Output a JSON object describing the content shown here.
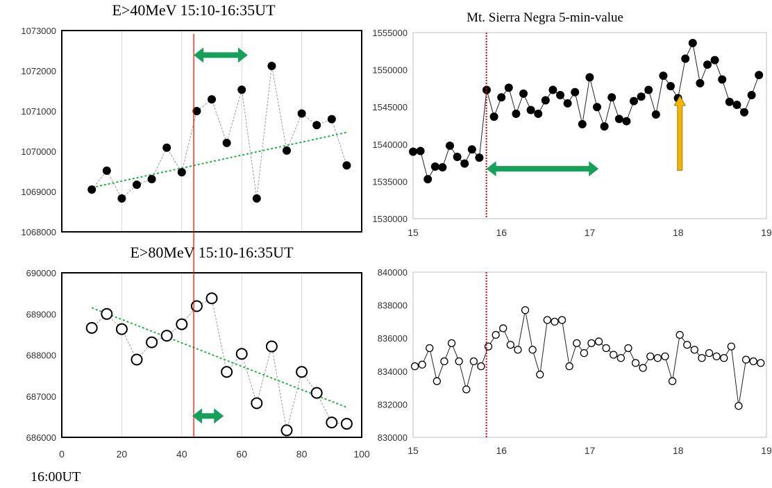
{
  "footer_label": "16:00UT",
  "colors": {
    "marker": "#000000",
    "trend": "#22b14c",
    "arrow_green": "#16a05a",
    "arrow_gold": "#f5b400",
    "vline": "#e00000",
    "grid": "#d9d9d9"
  },
  "chart_data": [
    {
      "id": "tl",
      "type": "scatter",
      "title": "E>40MeV  15:10-16:35UT",
      "xlabel": "",
      "ylabel": "",
      "xlim": [
        0,
        100
      ],
      "ylim": [
        1068000,
        1073000
      ],
      "x_ticks": [
        0,
        20,
        40,
        60,
        80,
        100
      ],
      "show_x_tick_labels": false,
      "y_ticks": [
        1068000,
        1069000,
        1070000,
        1071000,
        1072000,
        1073000
      ],
      "y_tick_labels": [
        "1068000",
        "1069000",
        "1070000",
        "1071000",
        "1072000",
        "1073000"
      ],
      "grid": "vertical",
      "marker": "filled",
      "connector": "dotted",
      "series": [
        {
          "x": [
            10,
            15,
            20,
            25,
            30,
            35,
            40,
            45,
            50,
            55,
            60,
            65,
            70,
            75,
            80,
            85,
            90,
            95
          ],
          "y": [
            1069050,
            1069520,
            1068830,
            1069170,
            1069310,
            1070090,
            1069480,
            1071000,
            1071290,
            1070210,
            1071530,
            1068830,
            1072120,
            1070020,
            1070940,
            1070650,
            1070800,
            1069650
          ]
        }
      ],
      "trendline": [
        [
          10,
          1069100
        ],
        [
          95,
          1070470
        ]
      ],
      "vline_x": 44,
      "arrow": {
        "type": "double",
        "x1": 44,
        "x2": 62,
        "y": 1072390
      }
    },
    {
      "id": "tr",
      "type": "scatter",
      "title": "Mt. Sierra Negra  5-min-value",
      "xlabel": "",
      "ylabel": "",
      "xlim": [
        15,
        19
      ],
      "ylim": [
        1530000,
        1555000
      ],
      "x_ticks": [
        15,
        16,
        17,
        18,
        19
      ],
      "show_x_tick_labels": true,
      "y_ticks": [
        1530000,
        1535000,
        1540000,
        1545000,
        1550000,
        1555000
      ],
      "y_tick_labels": [
        "1530000",
        "1535000",
        "1540000",
        "1545000",
        "1550000",
        "1555000"
      ],
      "grid": "none",
      "marker": "filled",
      "connector": "solid",
      "series": [
        {
          "x_start": 15.0,
          "x_step": 0.0833,
          "y": [
            1539000,
            1539100,
            1535300,
            1537000,
            1536900,
            1539800,
            1538300,
            1537400,
            1539300,
            1538200,
            1547300,
            1543700,
            1546300,
            1547600,
            1544100,
            1546800,
            1544600,
            1544100,
            1545900,
            1547300,
            1546600,
            1545500,
            1547000,
            1542700,
            1549000,
            1545000,
            1542400,
            1546300,
            1543400,
            1543100,
            1545800,
            1546400,
            1547300,
            1544000,
            1549200,
            1547800,
            1546200,
            1551500,
            1553600,
            1548200,
            1550700,
            1551300,
            1548700,
            1545700,
            1545300,
            1544300,
            1546600,
            1549300
          ]
        }
      ],
      "vline_x": 15.83,
      "arrow": {
        "type": "double",
        "x1": 15.83,
        "x2": 17.1,
        "y": 1536700
      },
      "arrow2": {
        "type": "up",
        "x": 18.02,
        "y1": 1536500,
        "y2": 1546500
      }
    },
    {
      "id": "bl",
      "type": "scatter",
      "title": "E>80MeV 15:10-16:35UT",
      "xlabel": "",
      "ylabel": "",
      "xlim": [
        0,
        100
      ],
      "ylim": [
        686000,
        690000
      ],
      "x_ticks": [
        0,
        20,
        40,
        60,
        80,
        100
      ],
      "show_x_tick_labels": true,
      "y_ticks": [
        686000,
        687000,
        688000,
        689000,
        690000
      ],
      "y_tick_labels": [
        "686000",
        "687000",
        "688000",
        "689000",
        "690000"
      ],
      "grid": "vertical",
      "marker": "open",
      "connector": "dotted",
      "series": [
        {
          "x": [
            10,
            15,
            20,
            25,
            30,
            35,
            40,
            45,
            50,
            55,
            60,
            65,
            70,
            75,
            80,
            85,
            90,
            95
          ],
          "y": [
            688660,
            689000,
            688630,
            687890,
            688310,
            688470,
            688750,
            689190,
            689380,
            687590,
            688030,
            686830,
            688210,
            686170,
            687590,
            687080,
            686360,
            686330
          ]
        }
      ],
      "trendline": [
        [
          10,
          689150
        ],
        [
          95,
          686730
        ]
      ],
      "vline_x": 44,
      "arrow": {
        "type": "double",
        "x1": 43.5,
        "x2": 54,
        "y": 686520
      }
    },
    {
      "id": "br",
      "type": "scatter",
      "title": "",
      "xlabel": "",
      "ylabel": "",
      "xlim": [
        15,
        19
      ],
      "ylim": [
        830000,
        840000
      ],
      "x_ticks": [
        15,
        16,
        17,
        18,
        19
      ],
      "show_x_tick_labels": true,
      "y_ticks": [
        830000,
        832000,
        834000,
        836000,
        838000,
        840000
      ],
      "y_tick_labels": [
        "830000",
        "832000",
        "834000",
        "836000",
        "838000",
        "840000"
      ],
      "grid": "none",
      "marker": "open",
      "connector": "solid",
      "series": [
        {
          "x_start": 15.02,
          "x_step": 0.0833,
          "y": [
            834300,
            834400,
            835400,
            833400,
            834600,
            835700,
            834600,
            832900,
            834600,
            834300,
            835500,
            836200,
            836600,
            835600,
            835300,
            837700,
            835300,
            833800,
            837100,
            837000,
            837100,
            834300,
            835700,
            835100,
            835700,
            835800,
            835400,
            835000,
            834800,
            835400,
            834500,
            834200,
            834900,
            834800,
            834900,
            833400,
            836200,
            835600,
            835300,
            834800,
            835100,
            834900,
            834800,
            835500,
            831900,
            834700,
            834600,
            834500
          ]
        }
      ],
      "vline_x": 15.83
    }
  ]
}
